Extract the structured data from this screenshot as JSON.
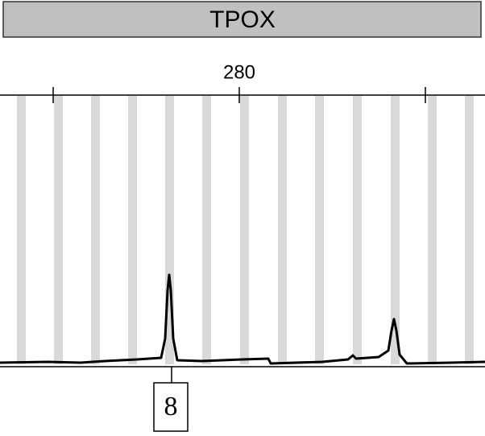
{
  "header": {
    "title": "TPOX"
  },
  "ruler": {
    "label": "280"
  },
  "allele": {
    "label": "8"
  }
}
